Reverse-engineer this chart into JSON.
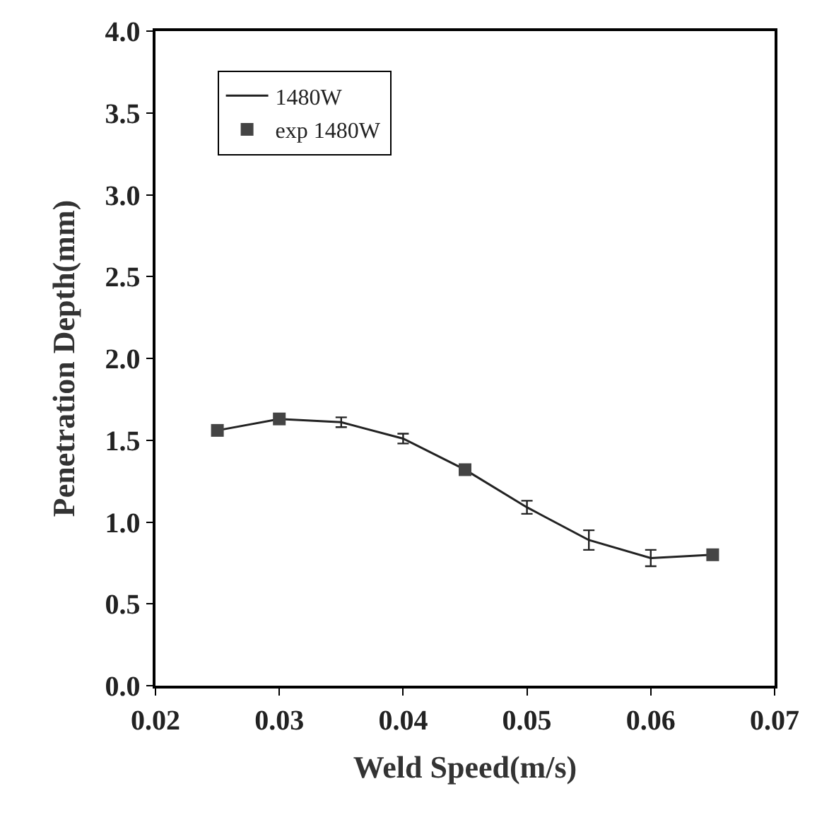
{
  "chart_data": {
    "type": "line",
    "xlabel": "Weld Speed(m/s)",
    "ylabel": "Penetration Depth(mm)",
    "xlim": [
      0.02,
      0.07
    ],
    "xticks": [
      0.02,
      0.03,
      0.04,
      0.05,
      0.06,
      0.07
    ],
    "ylim": [
      0,
      4.0
    ],
    "yticks": [
      {
        "value": 0,
        "label": "0.0"
      },
      0.5,
      {
        "value": 1,
        "label": "1.0"
      },
      1.5,
      {
        "value": 2,
        "label": "2.0"
      },
      2.5,
      {
        "value": 3,
        "label": "3.0"
      },
      3.5,
      {
        "value": 4,
        "label": "4.0"
      }
    ],
    "legend": "top left",
    "series": [
      {
        "name": "1480W",
        "color": "#222222",
        "marker": "none",
        "line_style": "solid",
        "x": [
          0.025,
          0.03,
          0.035,
          0.04,
          0.045,
          0.05,
          0.055,
          0.06,
          0.065
        ],
        "values": [
          1.56,
          1.63,
          1.61,
          1.51,
          1.32,
          1.09,
          0.89,
          0.78,
          0.8
        ],
        "errors": [
          null,
          null,
          0.03,
          0.03,
          null,
          0.04,
          0.06,
          0.05,
          null
        ]
      },
      {
        "name": "exp 1480W",
        "type": "scatter",
        "color": "#444444",
        "marker": "square",
        "x": [
          0.025,
          0.03,
          0.045,
          0.065
        ],
        "values": [
          1.56,
          1.63,
          1.32,
          0.8
        ]
      }
    ]
  }
}
